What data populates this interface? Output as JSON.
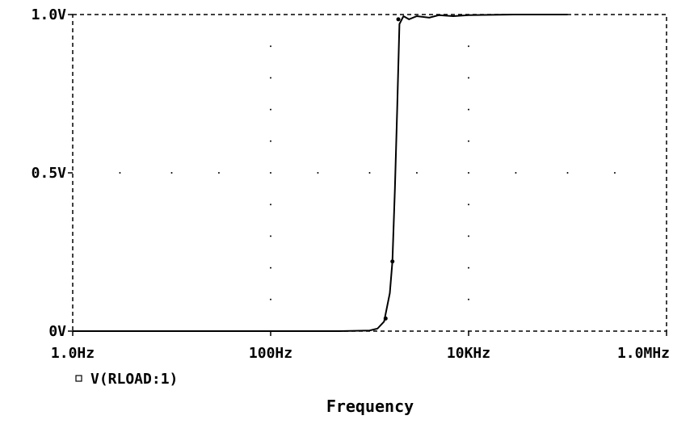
{
  "chart_data": {
    "type": "line",
    "x_scale": "log",
    "xlabel": "Frequency",
    "ylabel": "",
    "xlim": [
      1,
      1000000
    ],
    "ylim": [
      0,
      1
    ],
    "x_ticks": [
      {
        "value": 1,
        "label": "1.0Hz"
      },
      {
        "value": 100,
        "label": "100Hz"
      },
      {
        "value": 10000,
        "label": "10KHz"
      },
      {
        "value": 1000000,
        "label": "1.0MHz"
      }
    ],
    "y_ticks": [
      {
        "value": 0,
        "label": "0V"
      },
      {
        "value": 0.5,
        "label": "0.5V"
      },
      {
        "value": 1,
        "label": "1.0V"
      }
    ],
    "grid": "dotted",
    "legend": "bottom-left",
    "series": [
      {
        "name": "V(RLOAD:1)",
        "color": "#000000",
        "x": [
          1,
          10,
          100,
          500,
          1000,
          1200,
          1400,
          1600,
          1700,
          1800,
          1900,
          2000,
          2200,
          2500,
          3000,
          4000,
          5000,
          7000,
          10000,
          30000,
          100000
        ],
        "y": [
          0,
          0,
          0,
          0,
          0.002,
          0.008,
          0.03,
          0.12,
          0.22,
          0.45,
          0.7,
          0.97,
          0.995,
          0.985,
          0.995,
          0.99,
          0.998,
          0.995,
          0.998,
          1.0,
          1.0
        ]
      }
    ],
    "markers": [
      {
        "x": 1450,
        "y": 0.04
      },
      {
        "x": 1700,
        "y": 0.22
      },
      {
        "x": 1950,
        "y": 0.985
      }
    ]
  }
}
